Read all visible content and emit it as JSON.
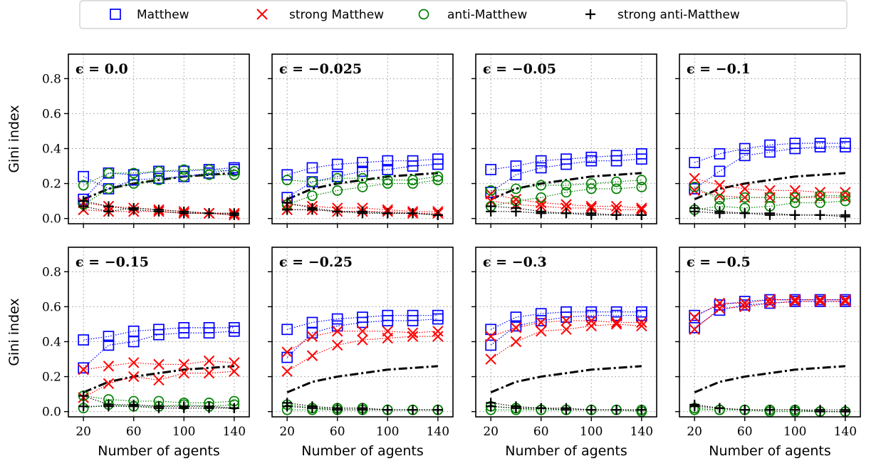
{
  "chart_data": {
    "type": "scatter",
    "layout": "2x4 small multiples",
    "ylabel": "Gini index",
    "xlabel": "Number of agents",
    "xlim": [
      8,
      152
    ],
    "ylim": [
      -0.03,
      0.94
    ],
    "xticks": [
      20,
      60,
      100,
      140
    ],
    "yticks": [
      0.0,
      0.2,
      0.4,
      0.6,
      0.8
    ],
    "grid": true,
    "legend": {
      "position": "top",
      "entries": [
        {
          "name": "Matthew",
          "marker": "square",
          "color": "#0000ff"
        },
        {
          "name": "strong Matthew",
          "marker": "x",
          "color": "#ff0000"
        },
        {
          "name": "anti-Matthew",
          "marker": "circle",
          "color": "#008000"
        },
        {
          "name": "strong anti-Matthew",
          "marker": "plus",
          "color": "#000000"
        }
      ]
    },
    "reference_curve": {
      "style": "dash-dot",
      "color": "#000000",
      "x": [
        20,
        40,
        60,
        80,
        100,
        120,
        140
      ],
      "y": [
        0.11,
        0.17,
        0.2,
        0.22,
        0.24,
        0.25,
        0.26
      ]
    },
    "x": [
      20,
      40,
      60,
      80,
      100,
      120,
      140
    ],
    "panels": [
      {
        "title": "ϵ = 0.0",
        "series": [
          {
            "name": "Matthew",
            "runs": [
              [
                0.24,
                0.17,
                0.22,
                0.23,
                0.24,
                0.26,
                0.28
              ],
              [
                0.11,
                0.26,
                0.25,
                0.27,
                0.27,
                0.28,
                0.29
              ]
            ]
          },
          {
            "name": "strong Matthew",
            "runs": [
              [
                0.09,
                0.07,
                0.06,
                0.05,
                0.04,
                0.03,
                0.03
              ],
              [
                0.05,
                0.04,
                0.04,
                0.04,
                0.03,
                0.03,
                0.02
              ]
            ]
          },
          {
            "name": "anti-Matthew",
            "runs": [
              [
                0.19,
                0.26,
                0.26,
                0.27,
                0.28,
                0.28,
                0.27
              ],
              [
                0.08,
                0.17,
                0.2,
                0.22,
                0.24,
                0.25,
                0.25
              ]
            ]
          },
          {
            "name": "strong anti-Matthew",
            "runs": [
              [
                0.07,
                0.04,
                0.06,
                0.05,
                0.04,
                0.03,
                0.03
              ],
              [
                0.1,
                0.07,
                0.05,
                0.04,
                0.03,
                0.03,
                0.02
              ]
            ]
          }
        ]
      },
      {
        "title": "ϵ = −0.025",
        "series": [
          {
            "name": "Matthew",
            "runs": [
              [
                0.25,
                0.29,
                0.31,
                0.32,
                0.33,
                0.33,
                0.34
              ],
              [
                0.12,
                0.21,
                0.24,
                0.27,
                0.28,
                0.3,
                0.31
              ]
            ]
          },
          {
            "name": "strong Matthew",
            "runs": [
              [
                0.08,
                0.07,
                0.06,
                0.06,
                0.05,
                0.04,
                0.04
              ],
              [
                0.05,
                0.05,
                0.04,
                0.04,
                0.04,
                0.03,
                0.03
              ]
            ]
          },
          {
            "name": "anti-Matthew",
            "runs": [
              [
                0.22,
                0.21,
                0.23,
                0.23,
                0.22,
                0.22,
                0.24
              ],
              [
                0.08,
                0.13,
                0.16,
                0.18,
                0.2,
                0.2,
                0.22
              ]
            ]
          },
          {
            "name": "strong anti-Matthew",
            "runs": [
              [
                0.05,
                0.05,
                0.04,
                0.03,
                0.03,
                0.03,
                0.02
              ],
              [
                0.09,
                0.06,
                0.04,
                0.04,
                0.03,
                0.03,
                0.02
              ]
            ]
          }
        ]
      },
      {
        "title": "ϵ = −0.05",
        "series": [
          {
            "name": "Matthew",
            "runs": [
              [
                0.28,
                0.3,
                0.33,
                0.34,
                0.35,
                0.36,
                0.37
              ],
              [
                0.15,
                0.25,
                0.29,
                0.31,
                0.33,
                0.33,
                0.34
              ]
            ]
          },
          {
            "name": "strong Matthew",
            "runs": [
              [
                0.14,
                0.11,
                0.09,
                0.08,
                0.07,
                0.07,
                0.06
              ],
              [
                0.1,
                0.08,
                0.07,
                0.06,
                0.06,
                0.05,
                0.05
              ]
            ]
          },
          {
            "name": "anti-Matthew",
            "runs": [
              [
                0.16,
                0.17,
                0.19,
                0.19,
                0.2,
                0.21,
                0.22
              ],
              [
                0.07,
                0.1,
                0.12,
                0.15,
                0.17,
                0.17,
                0.18
              ]
            ]
          },
          {
            "name": "strong anti-Matthew",
            "runs": [
              [
                0.04,
                0.04,
                0.03,
                0.03,
                0.02,
                0.02,
                0.02
              ],
              [
                0.07,
                0.06,
                0.04,
                0.03,
                0.03,
                0.02,
                0.02
              ]
            ]
          }
        ]
      },
      {
        "title": "ϵ = −0.1",
        "series": [
          {
            "name": "Matthew",
            "runs": [
              [
                0.32,
                0.37,
                0.4,
                0.42,
                0.43,
                0.43,
                0.43
              ],
              [
                0.17,
                0.27,
                0.36,
                0.38,
                0.4,
                0.41,
                0.41
              ]
            ]
          },
          {
            "name": "strong Matthew",
            "runs": [
              [
                0.23,
                0.19,
                0.17,
                0.16,
                0.16,
                0.15,
                0.15
              ],
              [
                0.16,
                0.13,
                0.12,
                0.12,
                0.12,
                0.12,
                0.12
              ]
            ]
          },
          {
            "name": "anti-Matthew",
            "runs": [
              [
                0.18,
                0.11,
                0.12,
                0.12,
                0.12,
                0.13,
                0.13
              ],
              [
                0.05,
                0.07,
                0.06,
                0.07,
                0.09,
                0.09,
                0.1
              ]
            ]
          },
          {
            "name": "strong anti-Matthew",
            "runs": [
              [
                0.04,
                0.03,
                0.03,
                0.02,
                0.02,
                0.02,
                0.01
              ],
              [
                0.06,
                0.04,
                0.03,
                0.03,
                0.02,
                0.02,
                0.02
              ]
            ]
          }
        ]
      },
      {
        "title": "ϵ = −0.15",
        "series": [
          {
            "name": "Matthew",
            "runs": [
              [
                0.41,
                0.43,
                0.46,
                0.47,
                0.48,
                0.48,
                0.48
              ],
              [
                0.25,
                0.38,
                0.4,
                0.44,
                0.45,
                0.45,
                0.46
              ]
            ]
          },
          {
            "name": "strong Matthew",
            "runs": [
              [
                0.24,
                0.26,
                0.28,
                0.27,
                0.27,
                0.29,
                0.28
              ],
              [
                0.08,
                0.16,
                0.2,
                0.18,
                0.22,
                0.22,
                0.23
              ]
            ]
          },
          {
            "name": "anti-Matthew",
            "runs": [
              [
                0.09,
                0.07,
                0.06,
                0.06,
                0.05,
                0.05,
                0.06
              ],
              [
                0.02,
                0.04,
                0.03,
                0.03,
                0.04,
                0.03,
                0.04
              ]
            ]
          },
          {
            "name": "strong anti-Matthew",
            "runs": [
              [
                0.03,
                0.03,
                0.03,
                0.02,
                0.02,
                0.02,
                0.02
              ],
              [
                0.09,
                0.04,
                0.04,
                0.03,
                0.03,
                0.03,
                0.02
              ]
            ]
          }
        ]
      },
      {
        "title": "ϵ = −0.25",
        "series": [
          {
            "name": "Matthew",
            "runs": [
              [
                0.47,
                0.51,
                0.53,
                0.54,
                0.55,
                0.55,
                0.55
              ],
              [
                0.31,
                0.45,
                0.49,
                0.51,
                0.52,
                0.52,
                0.53
              ]
            ]
          },
          {
            "name": "strong Matthew",
            "runs": [
              [
                0.34,
                0.43,
                0.46,
                0.46,
                0.46,
                0.45,
                0.46
              ],
              [
                0.23,
                0.32,
                0.38,
                0.41,
                0.42,
                0.43,
                0.43
              ]
            ]
          },
          {
            "name": "anti-Matthew",
            "runs": [
              [
                0.04,
                0.02,
                0.02,
                0.02,
                0.01,
                0.01,
                0.01
              ],
              [
                0.01,
                0.01,
                0.01,
                0.01,
                0.01,
                0.01,
                0.01
              ]
            ]
          },
          {
            "name": "strong anti-Matthew",
            "runs": [
              [
                0.03,
                0.02,
                0.01,
                0.01,
                0.01,
                0.01,
                0.01
              ],
              [
                0.05,
                0.03,
                0.02,
                0.02,
                0.01,
                0.01,
                0.01
              ]
            ]
          }
        ]
      },
      {
        "title": "ϵ = −0.3",
        "series": [
          {
            "name": "Matthew",
            "runs": [
              [
                0.47,
                0.54,
                0.56,
                0.57,
                0.57,
                0.57,
                0.57
              ],
              [
                0.38,
                0.49,
                0.52,
                0.54,
                0.55,
                0.55,
                0.55
              ]
            ]
          },
          {
            "name": "strong Matthew",
            "runs": [
              [
                0.43,
                0.48,
                0.51,
                0.52,
                0.52,
                0.51,
                0.51
              ],
              [
                0.3,
                0.4,
                0.46,
                0.47,
                0.49,
                0.5,
                0.49
              ]
            ]
          },
          {
            "name": "anti-Matthew",
            "runs": [
              [
                0.03,
                0.02,
                0.01,
                0.01,
                0.01,
                0.01,
                0.01
              ],
              [
                0.01,
                0.01,
                0.01,
                0.01,
                0.01,
                0.01,
                0.0
              ]
            ]
          },
          {
            "name": "strong anti-Matthew",
            "runs": [
              [
                0.03,
                0.02,
                0.02,
                0.01,
                0.01,
                0.01,
                0.01
              ],
              [
                0.05,
                0.03,
                0.02,
                0.02,
                0.01,
                0.01,
                0.01
              ]
            ]
          }
        ]
      },
      {
        "title": "ϵ = −0.5",
        "series": [
          {
            "name": "Matthew",
            "runs": [
              [
                0.55,
                0.61,
                0.63,
                0.64,
                0.64,
                0.64,
                0.64
              ],
              [
                0.48,
                0.58,
                0.61,
                0.62,
                0.63,
                0.63,
                0.63
              ]
            ]
          },
          {
            "name": "strong Matthew",
            "runs": [
              [
                0.54,
                0.62,
                0.62,
                0.64,
                0.64,
                0.64,
                0.64
              ],
              [
                0.47,
                0.59,
                0.6,
                0.62,
                0.63,
                0.63,
                0.63
              ]
            ]
          },
          {
            "name": "anti-Matthew",
            "runs": [
              [
                0.02,
                0.01,
                0.01,
                0.01,
                0.01,
                0.0,
                0.0
              ],
              [
                0.01,
                0.01,
                0.01,
                0.0,
                0.0,
                0.0,
                0.0
              ]
            ]
          },
          {
            "name": "strong anti-Matthew",
            "runs": [
              [
                0.03,
                0.02,
                0.01,
                0.01,
                0.01,
                0.01,
                0.01
              ],
              [
                0.04,
                0.02,
                0.01,
                0.01,
                0.01,
                0.0,
                0.0
              ]
            ]
          }
        ]
      }
    ]
  }
}
